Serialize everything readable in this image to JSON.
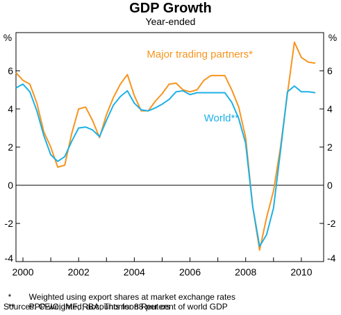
{
  "chart_data": {
    "type": "line",
    "title": "GDP Growth",
    "subtitle": "Year-ended",
    "y_unit_left": "%",
    "y_unit_right": "%",
    "ylim": [
      -4,
      8
    ],
    "y_ticks": [
      6,
      4,
      2,
      0,
      -2,
      -4
    ],
    "xlim": [
      1999.75,
      2010.8
    ],
    "x_ticks": [
      2000,
      2002,
      2004,
      2006,
      2008,
      2010
    ],
    "grid": false,
    "series": [
      {
        "name": "Major trading partners*",
        "color": "#F7941D",
        "x": [
          1999.75,
          2000.0,
          2000.25,
          2000.5,
          2000.75,
          2001.0,
          2001.25,
          2001.5,
          2001.75,
          2002.0,
          2002.25,
          2002.5,
          2002.75,
          2003.0,
          2003.25,
          2003.5,
          2003.75,
          2004.0,
          2004.25,
          2004.5,
          2004.75,
          2005.0,
          2005.25,
          2005.5,
          2005.75,
          2006.0,
          2006.25,
          2006.5,
          2006.75,
          2007.0,
          2007.25,
          2007.5,
          2007.75,
          2008.0,
          2008.25,
          2008.5,
          2008.75,
          2009.0,
          2009.25,
          2009.5,
          2009.75,
          2010.0,
          2010.25,
          2010.5
        ],
        "y": [
          5.9,
          5.5,
          5.3,
          4.3,
          2.8,
          2.0,
          0.95,
          1.05,
          2.7,
          4.0,
          4.1,
          3.4,
          2.5,
          3.7,
          4.6,
          5.3,
          5.8,
          4.7,
          3.9,
          3.9,
          4.4,
          4.8,
          5.3,
          5.35,
          5.0,
          4.9,
          5.0,
          5.5,
          5.75,
          5.75,
          5.75,
          5.0,
          4.1,
          2.5,
          -1.1,
          -3.4,
          -1.7,
          -0.3,
          2.0,
          4.8,
          7.5,
          6.7,
          6.45,
          6.4
        ]
      },
      {
        "name": "World**",
        "color": "#1DB0E6",
        "x": [
          1999.75,
          2000.0,
          2000.25,
          2000.5,
          2000.75,
          2001.0,
          2001.25,
          2001.5,
          2001.75,
          2002.0,
          2002.25,
          2002.5,
          2002.75,
          2003.0,
          2003.25,
          2003.5,
          2003.75,
          2004.0,
          2004.25,
          2004.5,
          2004.75,
          2005.0,
          2005.25,
          2005.5,
          2005.75,
          2006.0,
          2006.25,
          2006.5,
          2006.75,
          2007.0,
          2007.25,
          2007.5,
          2007.75,
          2008.0,
          2008.25,
          2008.5,
          2008.75,
          2009.0,
          2009.25,
          2009.5,
          2009.75,
          2010.0,
          2010.25,
          2010.5
        ],
        "y": [
          5.1,
          5.3,
          4.9,
          3.9,
          2.6,
          1.6,
          1.25,
          1.5,
          2.3,
          3.0,
          3.05,
          2.9,
          2.55,
          3.4,
          4.2,
          4.65,
          4.95,
          4.3,
          3.95,
          3.9,
          4.05,
          4.25,
          4.5,
          4.9,
          4.95,
          4.75,
          4.85,
          4.85,
          4.85,
          4.85,
          4.85,
          4.35,
          3.5,
          2.2,
          -1.1,
          -3.2,
          -2.6,
          -1.2,
          1.8,
          4.9,
          5.2,
          4.9,
          4.9,
          4.85
        ]
      }
    ],
    "annotations": [
      {
        "text": "Major trading partners*",
        "series": "Major trading partners*"
      },
      {
        "text": "World**",
        "series": "World**"
      }
    ]
  },
  "notes": [
    {
      "mark": "*",
      "text": "Weighted using export shares at market exchange rates"
    },
    {
      "mark": "**",
      "text": "PPP-weighted; accounts for 88 per cent of world GDP"
    }
  ],
  "sources": "Sources: CEIC; IMF; RBA; Thomson Reuters"
}
